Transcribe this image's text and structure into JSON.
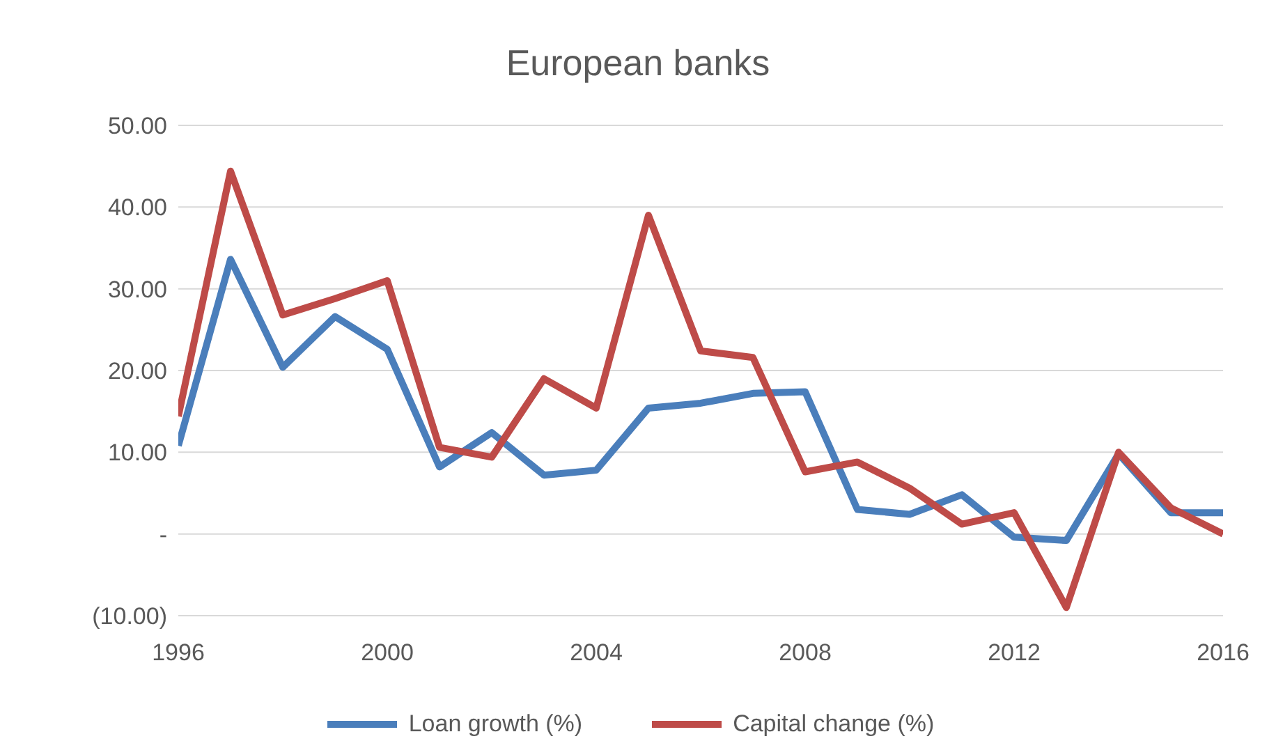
{
  "chart_data": {
    "type": "line",
    "title": "European banks",
    "x": [
      1996,
      1997,
      1998,
      1999,
      2000,
      2001,
      2002,
      2003,
      2004,
      2005,
      2006,
      2007,
      2008,
      2009,
      2010,
      2011,
      2012,
      2013,
      2014,
      2015,
      2016
    ],
    "series": [
      {
        "name": "Loan growth (%)",
        "color": "#4a7ebb",
        "values": [
          10.8,
          33.6,
          20.4,
          26.6,
          22.6,
          8.2,
          12.4,
          7.2,
          7.8,
          15.4,
          16,
          17.2,
          17.4,
          3,
          2.4,
          4.8,
          -0.4,
          -0.8,
          9.8,
          2.6,
          2.6
        ]
      },
      {
        "name": "Capital change (%)",
        "color": "#be4b48",
        "values": [
          14.4,
          44.4,
          26.8,
          28.8,
          31,
          10.6,
          9.4,
          19,
          15.4,
          39,
          22.4,
          21.6,
          7.6,
          8.8,
          5.6,
          1.2,
          2.6,
          -9,
          10,
          3.2,
          0
        ]
      }
    ],
    "xlim": [
      1996,
      2016
    ],
    "xticks": [
      1996,
      2000,
      2004,
      2008,
      2012,
      2016
    ],
    "ylim": [
      -10,
      50
    ],
    "yticks": [
      {
        "value": -10,
        "label": "(10.00)"
      },
      {
        "value": 0,
        "label": "-"
      },
      {
        "value": 10,
        "label": "10.00"
      },
      {
        "value": 20,
        "label": "20.00"
      },
      {
        "value": 30,
        "label": "30.00"
      },
      {
        "value": 40,
        "label": "40.00"
      },
      {
        "value": 50,
        "label": "50.00"
      }
    ],
    "grid": "y",
    "legend": "bottom",
    "marker": "none",
    "line_style": "solid"
  }
}
